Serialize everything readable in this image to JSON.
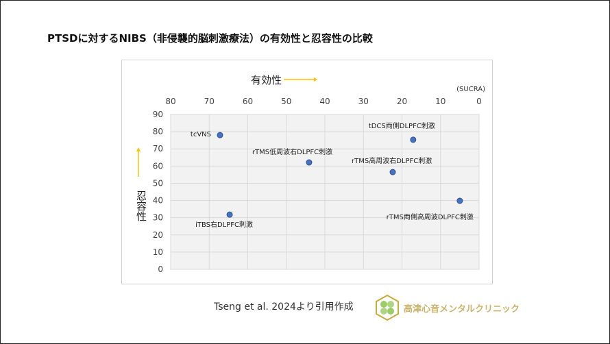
{
  "title": "PTSDに対するNIBS（非侵襲的脳刺激療法）の有効性と忍容性の比較",
  "citation": "Tseng et al. 2024より引用作成",
  "clinic_name": "高津心音メンタルクリニック",
  "colors": {
    "point": "#4472c4",
    "arrow": "#ffc000",
    "plot_bg": "#f2f2f2",
    "grid": "#d9d9d9"
  },
  "chart_data": {
    "type": "scatter",
    "xlabel": "有効性",
    "ylabel": "忍容性",
    "x_unit": "(SUCRA)",
    "xlim": [
      80,
      0
    ],
    "ylim": [
      0,
      90
    ],
    "x_reversed": true,
    "x_axis_position": "top",
    "grid": true,
    "xticks": [
      80,
      70,
      60,
      50,
      40,
      30,
      20,
      10,
      0
    ],
    "yticks": [
      0,
      10,
      20,
      30,
      40,
      50,
      60,
      70,
      80,
      90
    ],
    "points": [
      {
        "label": "tcVNS",
        "x": 67.2,
        "y": 78.0,
        "label_pos": "left"
      },
      {
        "label": "tDCS両側DLPFC刺激",
        "x": 17.1,
        "y": 75.3,
        "label_pos": "above-left"
      },
      {
        "label": "rTMS低周波右DLPFC刺激",
        "x": 44.1,
        "y": 62.1,
        "label_pos": "above"
      },
      {
        "label": "rTMS高周波右DLPFC刺激",
        "x": 22.4,
        "y": 56.5,
        "label_pos": "above-right"
      },
      {
        "label": "rTMS両側高周波DLPFC刺激",
        "x": 5.0,
        "y": 39.8,
        "label_pos": "below-left"
      },
      {
        "label": "iTBS右DLPFC刺激",
        "x": 64.7,
        "y": 31.8,
        "label_pos": "below"
      }
    ]
  }
}
